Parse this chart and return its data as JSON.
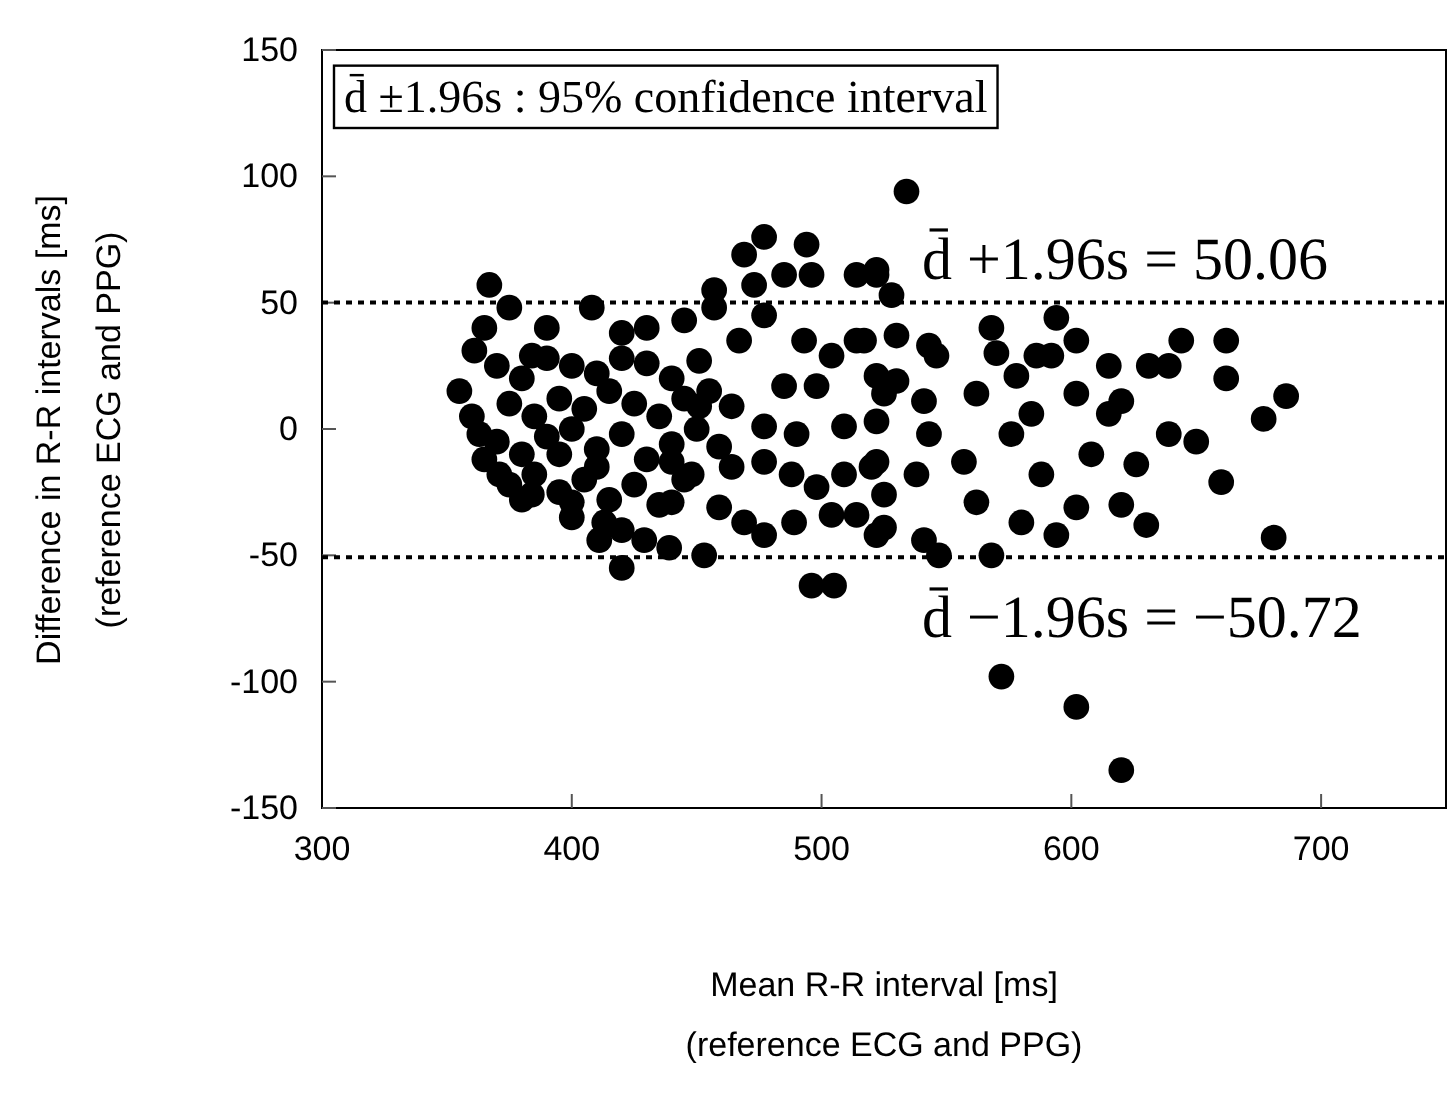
{
  "chart_data": {
    "type": "scatter",
    "xlabel": "Mean R-R interval  [ms]\n(reference ECG and PPG)",
    "ylabel": "Difference in R-R intervals [ms]\n(reference ECG and PPG)",
    "xlim": [
      300,
      750
    ],
    "xticks": [
      300,
      400,
      500,
      600,
      700
    ],
    "ylim": [
      -150,
      150
    ],
    "yticks": [
      -150,
      -100,
      -50,
      0,
      50,
      100,
      150
    ],
    "grid": false,
    "marker": "circle",
    "annotations": [
      "d̄ ±1.96s : 95% confidence interval"
    ],
    "ref_lines": [
      {
        "axis": "y",
        "value": 50.06,
        "label": "d̄ +1.96s = 50.06",
        "line_style": "dotted",
        "color": "#000000"
      },
      {
        "axis": "y",
        "value": -50.72,
        "label": "d̄ −1.96s = −50.72",
        "line_style": "dotted",
        "color": "#000000"
      }
    ],
    "series": [
      {
        "color": "#000000",
        "x": [
          534,
          572,
          602,
          620,
          686,
          677,
          681,
          662,
          662,
          660,
          644,
          650,
          630,
          620,
          626,
          639,
          631,
          615,
          594,
          602,
          568,
          570,
          586,
          578,
          543,
          530,
          522,
          528,
          514,
          525,
          541,
          568,
          547,
          594,
          602,
          580,
          562,
          588,
          608,
          557,
          538,
          520,
          522,
          541,
          562,
          584,
          602,
          620,
          576,
          543,
          530,
          546,
          592,
          615,
          639,
          522,
          367,
          375,
          365,
          361,
          355,
          408,
          384,
          363,
          371,
          384,
          400,
          413,
          411,
          420,
          429,
          439,
          453,
          440,
          459,
          469,
          477,
          489,
          496,
          505,
          504,
          514,
          522,
          477,
          469,
          494,
          485,
          496,
          473,
          457,
          514,
          522,
          445,
          457,
          477,
          467,
          493,
          504,
          517,
          485,
          498,
          525,
          451,
          451,
          464,
          477,
          490,
          509,
          459,
          464,
          477,
          488,
          498,
          509,
          522,
          525,
          448,
          440,
          370,
          380,
          390,
          400,
          410,
          420,
          430,
          440,
          375,
          385,
          395,
          405,
          415,
          425,
          435,
          445,
          370,
          380,
          390,
          400,
          410,
          420,
          430,
          440,
          375,
          385,
          395,
          405,
          415,
          425,
          435,
          400,
          420,
          360,
          365,
          450,
          455,
          445,
          390,
          420,
          430,
          410,
          395,
          380
        ],
        "values": [
          94,
          -98,
          -110,
          -135,
          13,
          4,
          -43,
          35,
          20,
          -21,
          35,
          -5,
          -38,
          -30,
          -14,
          25,
          25,
          25,
          44,
          35,
          40,
          30,
          29,
          21,
          33,
          37,
          61,
          53,
          35,
          -39,
          -44,
          -50,
          -50,
          -42,
          -31,
          -37,
          -29,
          -18,
          -10,
          -13,
          -18,
          -15,
          3,
          11,
          14,
          6,
          14,
          11,
          -2,
          -2,
          19,
          29,
          29,
          6,
          -2,
          21,
          57,
          48,
          40,
          31,
          15,
          48,
          29,
          -2,
          -18,
          -26,
          -29,
          -37,
          -44,
          -55,
          -44,
          -47,
          -50,
          -29,
          -31,
          -37,
          -42,
          -37,
          -62,
          -62,
          -34,
          -34,
          -42,
          76,
          69,
          73,
          61,
          61,
          57,
          55,
          61,
          63,
          43,
          48,
          45,
          35,
          35,
          29,
          35,
          17,
          17,
          14,
          27,
          9,
          9,
          1,
          -2,
          1,
          -7,
          -15,
          -13,
          -18,
          -23,
          -18,
          -13,
          -26,
          -18,
          -13,
          25,
          20,
          28,
          25,
          22,
          28,
          26,
          20,
          10,
          5,
          12,
          8,
          15,
          10,
          5,
          12,
          -5,
          -10,
          -3,
          0,
          -8,
          -2,
          -12,
          -6,
          -22,
          -18,
          -25,
          -20,
          -28,
          -22,
          -30,
          -35,
          -40,
          5,
          -12,
          0,
          15,
          -20,
          40,
          38,
          40,
          -15,
          -10,
          -28
        ]
      }
    ]
  }
}
